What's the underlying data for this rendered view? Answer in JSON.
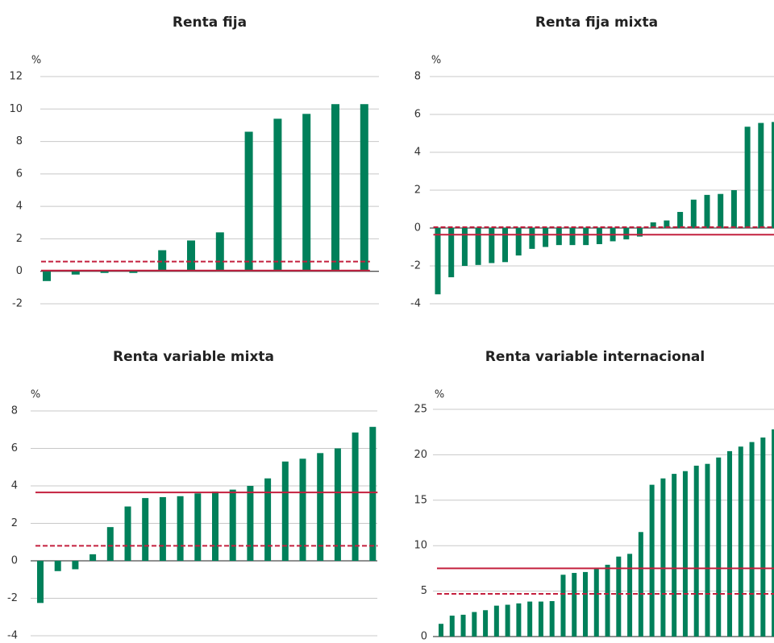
{
  "chart_data": [
    {
      "type": "bar",
      "title": "Renta fija",
      "y_label": "%",
      "color": "#00805a",
      "values": [
        -0.6,
        -0.2,
        -0.1,
        -0.1,
        1.3,
        1.9,
        2.4,
        8.6,
        9.4,
        9.7,
        10.3,
        10.3
      ],
      "ylim": [
        -2,
        12
      ],
      "yticks": [
        -2,
        0,
        2,
        4,
        6,
        8,
        10,
        12
      ],
      "grid": true,
      "reference_lines": [
        {
          "value": 0.05,
          "style": "solid",
          "color": "#c4203f"
        },
        {
          "value": 0.6,
          "style": "dashed",
          "color": "#c4203f"
        }
      ]
    },
    {
      "type": "bar",
      "title": "Renta fija mixta",
      "y_label": "%",
      "color": "#00805a",
      "values": [
        -3.5,
        -2.6,
        -2.0,
        -1.95,
        -1.85,
        -1.8,
        -1.45,
        -1.1,
        -1.0,
        -0.9,
        -0.9,
        -0.9,
        -0.85,
        -0.7,
        -0.6,
        -0.45,
        0.3,
        0.4,
        0.85,
        1.5,
        1.75,
        1.8,
        2.0,
        5.35,
        5.55,
        5.6
      ],
      "ylim": [
        -4,
        8
      ],
      "yticks": [
        -4,
        -2,
        0,
        2,
        4,
        6,
        8
      ],
      "grid": true,
      "reference_lines": [
        {
          "value": -0.35,
          "style": "solid",
          "color": "#c4203f"
        },
        {
          "value": 0.05,
          "style": "dashed",
          "color": "#c4203f"
        }
      ]
    },
    {
      "type": "bar",
      "title": "Renta variable mixta",
      "y_label": "%",
      "color": "#00805a",
      "values": [
        -2.25,
        -0.55,
        -0.45,
        0.35,
        1.8,
        2.9,
        3.35,
        3.4,
        3.45,
        3.6,
        3.7,
        3.8,
        4.0,
        4.4,
        5.3,
        5.45,
        5.75,
        6.0,
        6.85,
        7.15
      ],
      "ylim": [
        -4,
        8
      ],
      "yticks": [
        -4,
        -2,
        0,
        2,
        4,
        6,
        8
      ],
      "grid": true,
      "reference_lines": [
        {
          "value": 3.65,
          "style": "solid",
          "color": "#c4203f"
        },
        {
          "value": 0.8,
          "style": "dashed",
          "color": "#c4203f"
        }
      ]
    },
    {
      "type": "bar",
      "title": "Renta variable internacional",
      "y_label": "%",
      "color": "#00805a",
      "values": [
        1.4,
        2.3,
        2.4,
        2.7,
        2.9,
        3.4,
        3.5,
        3.65,
        3.85,
        3.85,
        3.9,
        6.8,
        7.0,
        7.1,
        7.5,
        7.9,
        8.8,
        9.1,
        11.5,
        16.7,
        17.4,
        17.9,
        18.2,
        18.8,
        19.0,
        19.7,
        20.4,
        20.9,
        21.4,
        21.9,
        22.8
      ],
      "ylim": [
        0,
        25
      ],
      "yticks": [
        0,
        5,
        10,
        15,
        20,
        25
      ],
      "grid": true,
      "reference_lines": [
        {
          "value": 7.5,
          "style": "solid",
          "color": "#c4203f"
        },
        {
          "value": 4.7,
          "style": "dashed",
          "color": "#c4203f"
        }
      ]
    }
  ]
}
